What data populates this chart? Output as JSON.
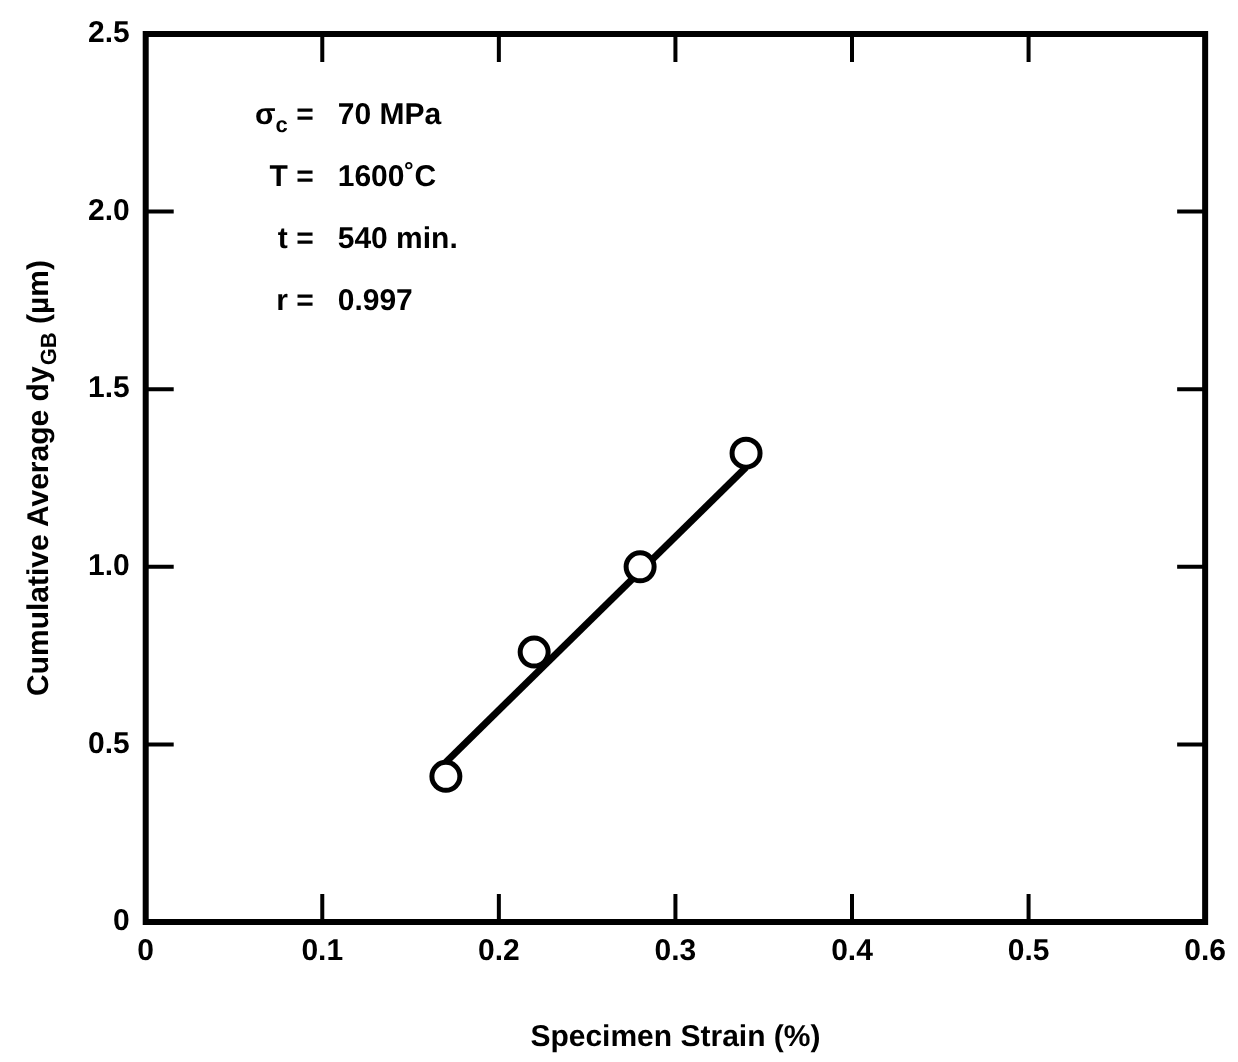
{
  "chart_data": {
    "type": "scatter",
    "xlabel": "Specimen Strain (%)",
    "ylabel": "Cumulative Average dy$_{GB}$ (µm)",
    "xlim": [
      0,
      0.6
    ],
    "xticks": [
      0,
      0.1,
      0.2,
      0.3,
      0.4,
      0.5,
      0.6
    ],
    "ylim": [
      0,
      2.5
    ],
    "yticks": [
      0,
      0.5,
      {
        "value": 1,
        "label": "1.0"
      },
      1.5,
      {
        "value": 2,
        "label": "2.0"
      },
      2.5
    ],
    "grid": false,
    "legend": false,
    "marker": "circle",
    "annotations": [
      "σ$_{c}$ =  70 MPa",
      "T =  1600˚C",
      "t =  540 min.",
      "r =  0.997"
    ],
    "series": [
      {
        "type": "scatter",
        "color": "#000000",
        "x": [
          0.17,
          0.22,
          0.28,
          0.34
        ],
        "values": [
          0.41,
          0.76,
          1.0,
          1.32
        ]
      },
      {
        "type": "line",
        "color": "#000000",
        "line_style": "solid",
        "marker": "none",
        "x": [
          0.17,
          0.34
        ],
        "values": [
          0.45,
          1.28
        ]
      }
    ]
  }
}
